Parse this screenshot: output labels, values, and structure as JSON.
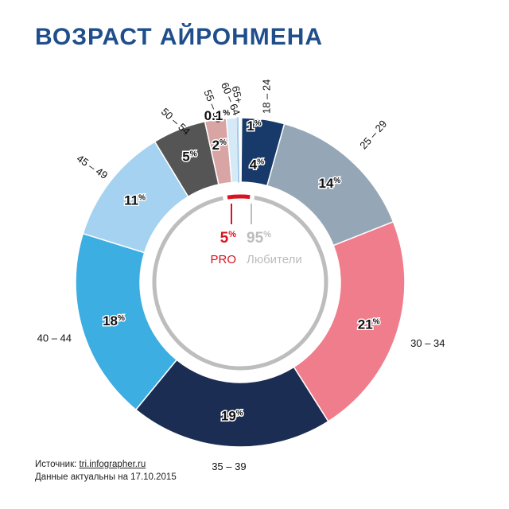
{
  "title": "ВОЗРАСТ АЙРОНМЕНА",
  "footer": {
    "source_prefix": "Источник: ",
    "source_link": "tri.infographer.ru",
    "date_line": "Данные актуальны на 17.10.2015"
  },
  "chart_data": [
    {
      "type": "pie",
      "variant": "donut",
      "title": "ВОЗРАСТ АЙРОНМЕНА",
      "categories": [
        "18 – 24",
        "25 – 29",
        "30 – 34",
        "35 – 39",
        "40 – 44",
        "45 – 49",
        "50 – 54",
        "55 – 59",
        "60 – 64",
        "65+"
      ],
      "values": [
        4,
        14,
        21,
        19,
        18,
        11,
        5,
        2,
        1,
        0.1
      ],
      "value_labels": [
        "4",
        "14",
        "21",
        "19",
        "18",
        "11",
        "5",
        "2",
        "1",
        "0.1"
      ],
      "unit": "%",
      "colors": [
        "#173a6b",
        "#95a6b6",
        "#f07d8c",
        "#1b2d52",
        "#3caee2",
        "#a5d2f0",
        "#555555",
        "#d8a4a4",
        "#d6e9f7",
        "#f5f5f5"
      ],
      "legend": "none"
    },
    {
      "type": "pie",
      "variant": "ring",
      "categories": [
        "PRO",
        "Любители"
      ],
      "values": [
        5,
        95
      ],
      "value_labels": [
        "5",
        "95"
      ],
      "unit": "%",
      "colors": [
        "#d9121f",
        "#bdbdbd"
      ],
      "legend": "none"
    }
  ]
}
